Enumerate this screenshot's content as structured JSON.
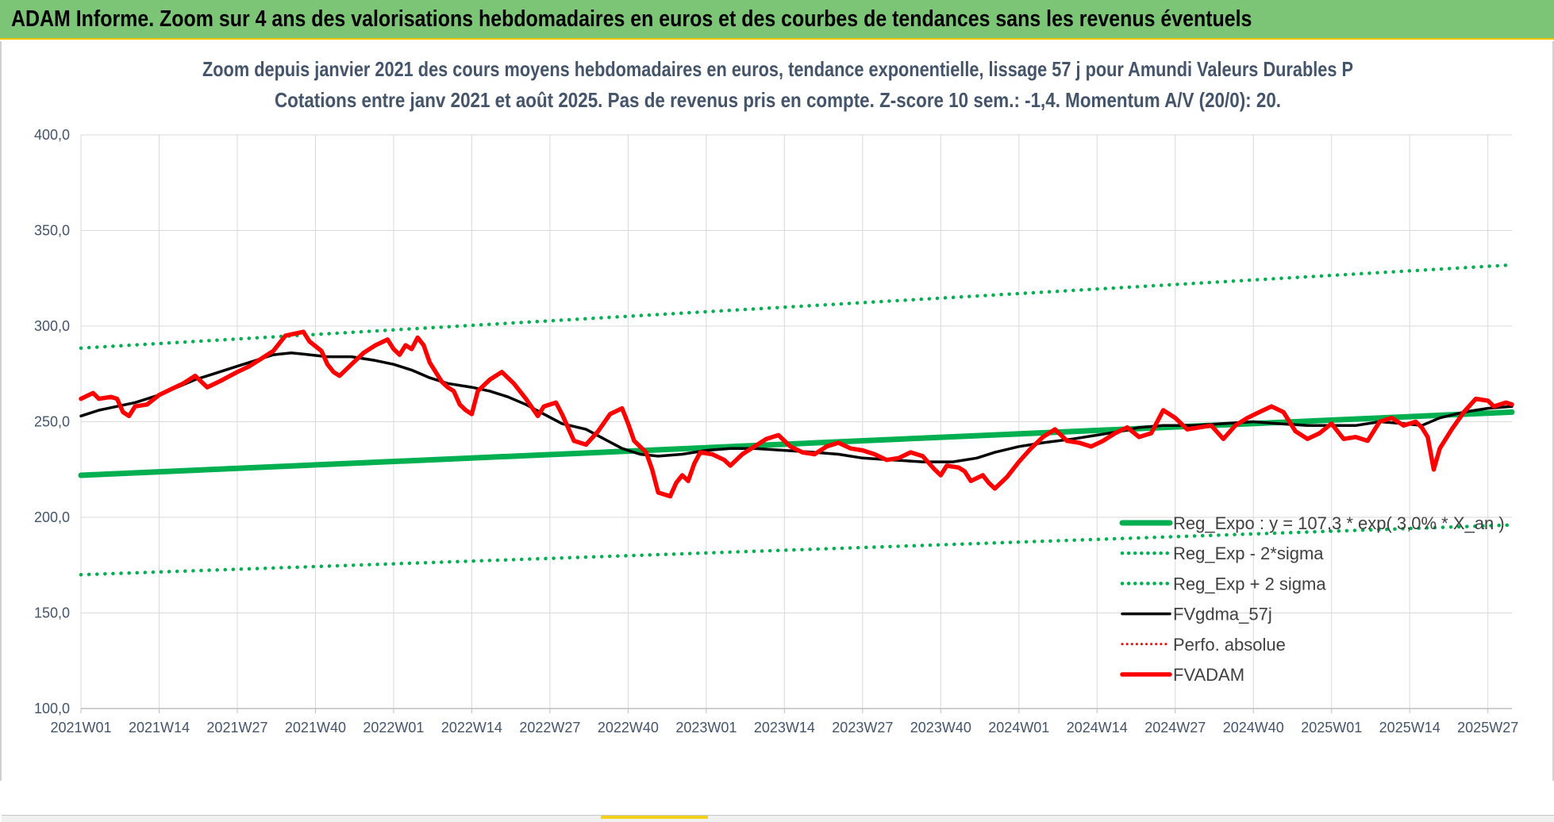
{
  "header": {
    "title": "ADAM Informe. Zoom sur 4 ans des valorisations hebdomadaires en euros et des courbes de tendances sans les revenus éventuels"
  },
  "colors": {
    "banner": "#7cc576",
    "trend": "#00b050",
    "price": "#ff0000",
    "smooth": "#000000"
  },
  "chart_data": {
    "type": "line",
    "title": [
      "Zoom depuis janvier 2021 des cours moyens hebdomadaires en euros, tendance exponentielle, lissage 57 j pour Amundi Valeurs Durables P",
      "Cotations entre janv 2021 et août 2025.  Pas de revenus pris en compte. Z-score 10 sem.: -1,4. Momentum A/V (20/0): 20."
    ],
    "y_ticks": [
      "100,0",
      "150,0",
      "200,0",
      "250,0",
      "300,0",
      "350,0",
      "400,0"
    ],
    "ylim": [
      100,
      400
    ],
    "x_ticks": [
      "2021W01",
      "2021W14",
      "2021W27",
      "2021W40",
      "2022W01",
      "2022W14",
      "2022W27",
      "2022W40",
      "2023W01",
      "2023W14",
      "2023W27",
      "2023W40",
      "2024W01",
      "2024W14",
      "2024W27",
      "2024W40",
      "2025W01",
      "2025W14",
      "2025W27"
    ],
    "x_tick_positions": [
      0,
      13,
      26,
      39,
      52,
      65,
      78,
      91,
      104,
      117,
      130,
      143,
      156,
      169,
      182,
      195,
      208,
      221,
      234
    ],
    "x_range": [
      0,
      238
    ],
    "grid": true,
    "legend_position": "bottom-right",
    "legend": [
      "Reg_Expo : y = 107,3 * exp( 3,0% * X_an )",
      "Reg_Exp - 2*sigma",
      "Reg_Exp + 2 sigma",
      "FVgdma_57j",
      "Perfo. absolue",
      "FVADAM"
    ],
    "series": [
      {
        "name": "Reg_Expo : y = 107,3 * exp( 3,0% * X_an )",
        "style": "solid-thick",
        "color": "#00b050",
        "points": [
          [
            0,
            222
          ],
          [
            238,
            255
          ]
        ]
      },
      {
        "name": "Reg_Exp - 2*sigma",
        "style": "dotted",
        "color": "#00b050",
        "points": [
          [
            0,
            170
          ],
          [
            238,
            196
          ]
        ]
      },
      {
        "name": "Reg_Exp + 2 sigma",
        "style": "dotted",
        "color": "#00b050",
        "points": [
          [
            0,
            288.5
          ],
          [
            238,
            332
          ]
        ]
      },
      {
        "name": "FVgdma_57j",
        "style": "solid",
        "color": "#000000",
        "points": [
          [
            0,
            253
          ],
          [
            3,
            256
          ],
          [
            6,
            258
          ],
          [
            9,
            260
          ],
          [
            13,
            264
          ],
          [
            16,
            268
          ],
          [
            19,
            272
          ],
          [
            22,
            275
          ],
          [
            26,
            279
          ],
          [
            29,
            282
          ],
          [
            32,
            285
          ],
          [
            35,
            286
          ],
          [
            38,
            285
          ],
          [
            41,
            284
          ],
          [
            45,
            284
          ],
          [
            49,
            282
          ],
          [
            52,
            280
          ],
          [
            55,
            277
          ],
          [
            58,
            273
          ],
          [
            61,
            270
          ],
          [
            65,
            268
          ],
          [
            68,
            266
          ],
          [
            71,
            263
          ],
          [
            74,
            259
          ],
          [
            77,
            254
          ],
          [
            80,
            249
          ],
          [
            84,
            246
          ],
          [
            87,
            241
          ],
          [
            90,
            236
          ],
          [
            93,
            233
          ],
          [
            96,
            232
          ],
          [
            100,
            233
          ],
          [
            104,
            235
          ],
          [
            108,
            236
          ],
          [
            112,
            236
          ],
          [
            117,
            235
          ],
          [
            122,
            234
          ],
          [
            126,
            233
          ],
          [
            130,
            231
          ],
          [
            135,
            230
          ],
          [
            140,
            229
          ],
          [
            145,
            229
          ],
          [
            149,
            231
          ],
          [
            152,
            234
          ],
          [
            156,
            237
          ],
          [
            160,
            239
          ],
          [
            165,
            241
          ],
          [
            169,
            243
          ],
          [
            173,
            245
          ],
          [
            176,
            247
          ],
          [
            180,
            248
          ],
          [
            185,
            248
          ],
          [
            190,
            249
          ],
          [
            195,
            250
          ],
          [
            199,
            249
          ],
          [
            204,
            248
          ],
          [
            208,
            248
          ],
          [
            212,
            248
          ],
          [
            216,
            250
          ],
          [
            220,
            249
          ],
          [
            223,
            248
          ],
          [
            226,
            252
          ],
          [
            230,
            255
          ],
          [
            234,
            257
          ],
          [
            238,
            258
          ]
        ]
      },
      {
        "name": "FVADAM",
        "style": "solid-thick",
        "color": "#ff0000",
        "points": [
          [
            0,
            262
          ],
          [
            2,
            265
          ],
          [
            3,
            262
          ],
          [
            5,
            263
          ],
          [
            6,
            262
          ],
          [
            7,
            255
          ],
          [
            8,
            253
          ],
          [
            9,
            258
          ],
          [
            11,
            259
          ],
          [
            13,
            264
          ],
          [
            15,
            267
          ],
          [
            17,
            270
          ],
          [
            19,
            274
          ],
          [
            21,
            268
          ],
          [
            23,
            271
          ],
          [
            26,
            276
          ],
          [
            28,
            279
          ],
          [
            30,
            283
          ],
          [
            32,
            287
          ],
          [
            34,
            295
          ],
          [
            37,
            297
          ],
          [
            38,
            292
          ],
          [
            40,
            287
          ],
          [
            41,
            280
          ],
          [
            42,
            276
          ],
          [
            43,
            274
          ],
          [
            45,
            280
          ],
          [
            47,
            286
          ],
          [
            49,
            290
          ],
          [
            51,
            293
          ],
          [
            52,
            288
          ],
          [
            53,
            285
          ],
          [
            54,
            290
          ],
          [
            55,
            288
          ],
          [
            56,
            294
          ],
          [
            57,
            290
          ],
          [
            58,
            281
          ],
          [
            60,
            271
          ],
          [
            61,
            268
          ],
          [
            62,
            266
          ],
          [
            63,
            259
          ],
          [
            64,
            256
          ],
          [
            65,
            254
          ],
          [
            66,
            266
          ],
          [
            68,
            272
          ],
          [
            70,
            276
          ],
          [
            72,
            270
          ],
          [
            74,
            262
          ],
          [
            76,
            253
          ],
          [
            77,
            258
          ],
          [
            79,
            260
          ],
          [
            80,
            254
          ],
          [
            82,
            240
          ],
          [
            84,
            238
          ],
          [
            86,
            245
          ],
          [
            88,
            254
          ],
          [
            90,
            257
          ],
          [
            91,
            249
          ],
          [
            92,
            240
          ],
          [
            94,
            234
          ],
          [
            95,
            225
          ],
          [
            96,
            213
          ],
          [
            98,
            211
          ],
          [
            99,
            218
          ],
          [
            100,
            222
          ],
          [
            101,
            219
          ],
          [
            102,
            228
          ],
          [
            103,
            234
          ],
          [
            105,
            233
          ],
          [
            107,
            230
          ],
          [
            108,
            227
          ],
          [
            110,
            233
          ],
          [
            112,
            237
          ],
          [
            114,
            241
          ],
          [
            116,
            243
          ],
          [
            118,
            237
          ],
          [
            120,
            234
          ],
          [
            122,
            233
          ],
          [
            124,
            237
          ],
          [
            126,
            239
          ],
          [
            128,
            236
          ],
          [
            130,
            235
          ],
          [
            132,
            233
          ],
          [
            134,
            230
          ],
          [
            136,
            231
          ],
          [
            138,
            234
          ],
          [
            140,
            232
          ],
          [
            142,
            225
          ],
          [
            143,
            222
          ],
          [
            144,
            227
          ],
          [
            146,
            226
          ],
          [
            147,
            224
          ],
          [
            148,
            219
          ],
          [
            150,
            222
          ],
          [
            151,
            218
          ],
          [
            152,
            215
          ],
          [
            154,
            221
          ],
          [
            156,
            229
          ],
          [
            158,
            236
          ],
          [
            160,
            242
          ],
          [
            162,
            246
          ],
          [
            164,
            240
          ],
          [
            166,
            239
          ],
          [
            168,
            237
          ],
          [
            170,
            240
          ],
          [
            172,
            244
          ],
          [
            174,
            247
          ],
          [
            176,
            242
          ],
          [
            178,
            244
          ],
          [
            180,
            256
          ],
          [
            182,
            252
          ],
          [
            184,
            246
          ],
          [
            186,
            247
          ],
          [
            188,
            248
          ],
          [
            190,
            241
          ],
          [
            192,
            248
          ],
          [
            194,
            252
          ],
          [
            196,
            255
          ],
          [
            198,
            258
          ],
          [
            200,
            255
          ],
          [
            202,
            245
          ],
          [
            204,
            241
          ],
          [
            206,
            244
          ],
          [
            208,
            249
          ],
          [
            210,
            241
          ],
          [
            212,
            242
          ],
          [
            214,
            240
          ],
          [
            216,
            250
          ],
          [
            218,
            252
          ],
          [
            220,
            248
          ],
          [
            222,
            250
          ],
          [
            223,
            247
          ],
          [
            224,
            242
          ],
          [
            225,
            225
          ],
          [
            226,
            236
          ],
          [
            228,
            246
          ],
          [
            230,
            255
          ],
          [
            232,
            262
          ],
          [
            234,
            261
          ],
          [
            235,
            258
          ],
          [
            237,
            260
          ],
          [
            238,
            259
          ]
        ]
      }
    ]
  }
}
